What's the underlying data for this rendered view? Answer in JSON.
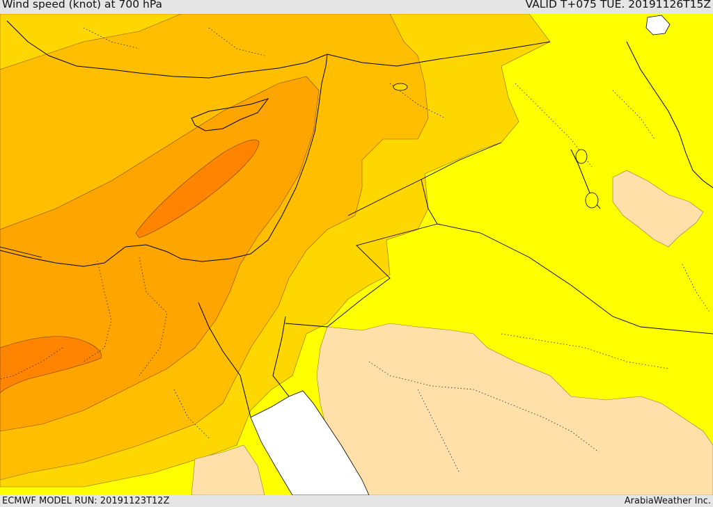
{
  "header": {
    "title": "Wind speed (knot) at 700 hPa",
    "valid_time": "VALID T+075 TUE. 20191126T15Z"
  },
  "footer": {
    "model_run": "ECMWF MODEL RUN: 20191123T12Z",
    "credit": "ArabiaWeather Inc."
  },
  "map": {
    "colors": {
      "very_light": "#ffe0a8",
      "yellow": "#ffff00",
      "light_orange": "#ffd700",
      "orange": "#ffbf00",
      "dark_orange": "#ffa500",
      "deep_orange": "#ff8500",
      "sea_white": "#ffffff"
    }
  }
}
